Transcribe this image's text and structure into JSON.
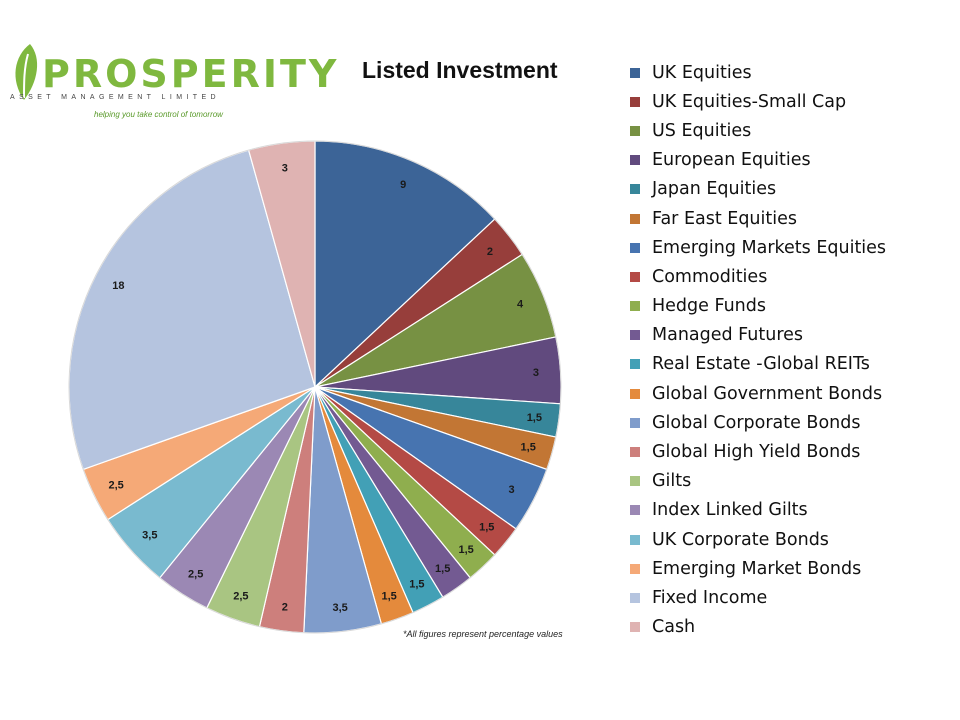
{
  "logo": {
    "word": "PROSPERITY",
    "subtitle": "ASSET MANAGEMENT LIMITED",
    "tagline": "helping you take control of tomorrow",
    "color": "#7fb83f"
  },
  "footnote": "*All figures represent percentage values",
  "chart_data": {
    "type": "pie",
    "title": "Listed Investment",
    "legend_position": "right",
    "start_angle": "12 o'clock",
    "direction": "clockwise",
    "slices": [
      {
        "label": "UK Equities",
        "value": 9,
        "display": "9",
        "color": "#3c6497"
      },
      {
        "label": "UK Equities-Small Cap",
        "value": 2,
        "display": "2",
        "color": "#973e3b"
      },
      {
        "label": "US Equities",
        "value": 4,
        "display": "4",
        "color": "#779143"
      },
      {
        "label": "European Equities",
        "value": 3,
        "display": "3",
        "color": "#614a7e"
      },
      {
        "label": "Japan Equities",
        "value": 1.5,
        "display": "1,5",
        "color": "#37869a"
      },
      {
        "label": "Far East Equities",
        "value": 1.5,
        "display": "1,5",
        "color": "#c27634"
      },
      {
        "label": "Emerging Markets Equities",
        "value": 3,
        "display": "3",
        "color": "#4774b0"
      },
      {
        "label": "Commodities",
        "value": 1.5,
        "display": "1,5",
        "color": "#b44a45"
      },
      {
        "label": "Hedge Funds",
        "value": 1.5,
        "display": "1,5",
        "color": "#8fae4e"
      },
      {
        "label": "Managed Futures",
        "value": 1.5,
        "display": "1,5",
        "color": "#735a92"
      },
      {
        "label": "Real Estate -Global REITs",
        "value": 1.5,
        "display": "1,5",
        "color": "#42a0b6"
      },
      {
        "label": "Global Government Bonds",
        "value": 1.5,
        "display": "1,5",
        "color": "#e48a3c"
      },
      {
        "label": "Global Corporate Bonds",
        "value": 3.5,
        "display": "3,5",
        "color": "#7f9ccb"
      },
      {
        "label": "Global High Yield Bonds",
        "value": 2,
        "display": "2",
        "color": "#cd7f7c"
      },
      {
        "label": "Gilts",
        "value": 2.5,
        "display": "2,5",
        "color": "#a9c582"
      },
      {
        "label": "Index Linked Gilts",
        "value": 2.5,
        "display": "2,5",
        "color": "#9b88b4"
      },
      {
        "label": "UK Corporate Bonds",
        "value": 3.5,
        "display": "3,5",
        "color": "#79bacf"
      },
      {
        "label": "Emerging Market Bonds",
        "value": 2.5,
        "display": "2,5",
        "color": "#f5a977"
      },
      {
        "label": "Fixed Income",
        "value": 18,
        "display": "18",
        "color": "#b5c4df"
      },
      {
        "label": "Cash",
        "value": 3,
        "display": "3",
        "color": "#dfb3b2"
      }
    ]
  }
}
